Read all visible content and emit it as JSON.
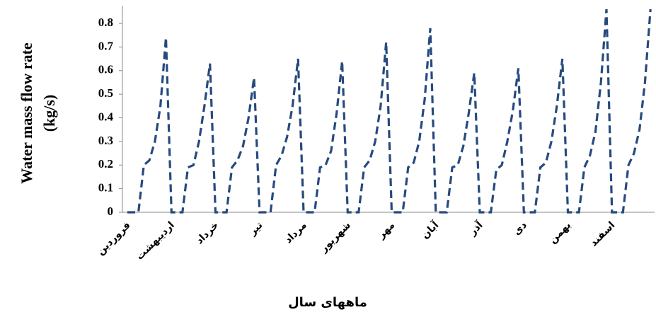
{
  "chart_data": {
    "type": "line",
    "y_label": [
      "Water mass flow rate",
      "(kg/s)"
    ],
    "x_label": "ماههای سال",
    "color": "#264a7e",
    "dashed": true,
    "ylim": [
      0,
      0.875
    ],
    "yticks": [
      0,
      0.1,
      0.2,
      0.3,
      0.4,
      0.5,
      0.6,
      0.7,
      0.8
    ],
    "categories": [
      "فروردین",
      null,
      null,
      null,
      null,
      null,
      null,
      null,
      "اردیبهشت",
      null,
      null,
      null,
      null,
      null,
      null,
      null,
      "خرداد",
      null,
      null,
      null,
      null,
      null,
      null,
      null,
      "تیر",
      null,
      null,
      null,
      null,
      null,
      null,
      null,
      "مرداد",
      null,
      null,
      null,
      null,
      null,
      null,
      null,
      "شهریور",
      null,
      null,
      null,
      null,
      null,
      null,
      null,
      "مهر",
      null,
      null,
      null,
      null,
      null,
      null,
      null,
      "آبان",
      null,
      null,
      null,
      null,
      null,
      null,
      null,
      "آذر",
      null,
      null,
      null,
      null,
      null,
      null,
      null,
      "دی",
      null,
      null,
      null,
      null,
      null,
      null,
      null,
      "بهمن",
      null,
      null,
      null,
      null,
      null,
      null,
      null,
      "اسفند",
      null,
      null,
      null,
      null,
      null,
      null,
      null
    ],
    "values": [
      0,
      0,
      0,
      0.2,
      0.22,
      0.3,
      0.45,
      0.74,
      0,
      0,
      0,
      0.19,
      0.2,
      0.3,
      0.45,
      0.63,
      0,
      0,
      0,
      0.19,
      0.22,
      0.28,
      0.4,
      0.57,
      0,
      0,
      0,
      0.2,
      0.24,
      0.32,
      0.45,
      0.65,
      0,
      0,
      0,
      0.19,
      0.2,
      0.26,
      0.42,
      0.64,
      0,
      0,
      0,
      0.19,
      0.22,
      0.3,
      0.45,
      0.72,
      0,
      0,
      0,
      0.19,
      0.21,
      0.3,
      0.48,
      0.78,
      0,
      0,
      0,
      0.19,
      0.2,
      0.28,
      0.42,
      0.59,
      0,
      0,
      0,
      0.18,
      0.2,
      0.3,
      0.43,
      0.61,
      0,
      0,
      0,
      0.19,
      0.21,
      0.3,
      0.45,
      0.65,
      0,
      0,
      0,
      0.19,
      0.24,
      0.34,
      0.55,
      0.86,
      0,
      0,
      0,
      0.2,
      0.25,
      0.35,
      0.55,
      0.86
    ]
  }
}
